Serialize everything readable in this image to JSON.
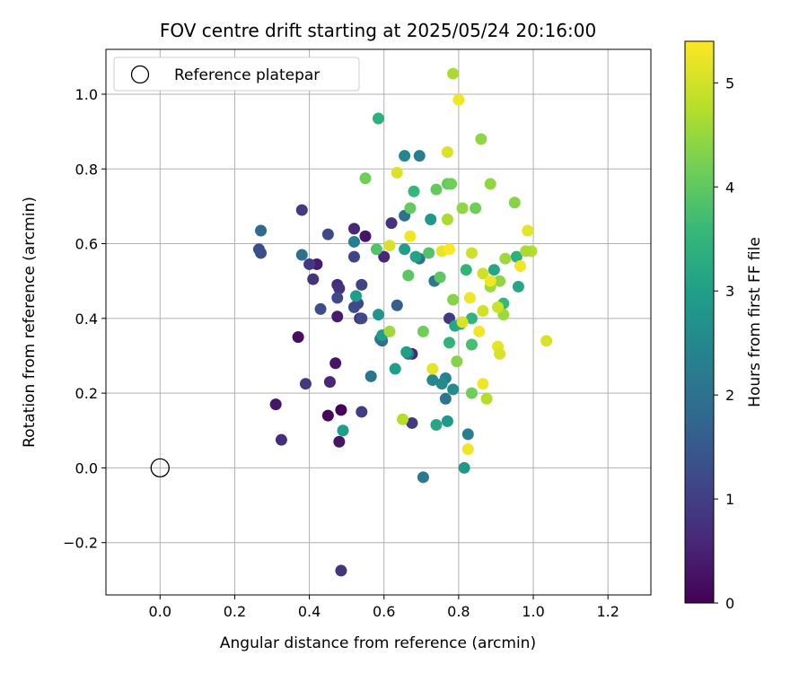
{
  "chart_data": {
    "type": "scatter",
    "title": "FOV centre drift starting at 2025/05/24 20:16:00",
    "xlabel": "Angular distance from reference (arcmin)",
    "ylabel": "Rotation from reference (arcmin)",
    "xlim": [
      -0.145,
      1.315
    ],
    "ylim": [
      -0.34,
      1.12
    ],
    "xticks": [
      0.0,
      0.2,
      0.4,
      0.6,
      0.8,
      1.0,
      1.2
    ],
    "xtick_labels": [
      "0.0",
      "0.2",
      "0.4",
      "0.6",
      "0.8",
      "1.0",
      "1.2"
    ],
    "yticks": [
      -0.2,
      0.0,
      0.2,
      0.4,
      0.6,
      0.8,
      1.0
    ],
    "ytick_labels": [
      "−0.2",
      "0.0",
      "0.2",
      "0.4",
      "0.6",
      "0.8",
      "1.0"
    ],
    "grid": true,
    "legend": {
      "position": "top-left",
      "label": "Reference platepar"
    },
    "reference_point": {
      "x": 0.0,
      "y": 0.0
    },
    "colorbar": {
      "label": "Hours from first FF file",
      "min": 0,
      "max": 5.4,
      "ticks": [
        0,
        1,
        2,
        3,
        4,
        5
      ],
      "colormap": [
        "#440154",
        "#482878",
        "#3e4989",
        "#31688e",
        "#26828e",
        "#1f9e89",
        "#35b779",
        "#6ece58",
        "#b5de2b",
        "#fde725"
      ]
    },
    "series": [
      {
        "points": [
          {
            "x": 0.485,
            "y": 0.155,
            "c": 0.05
          },
          {
            "x": 0.45,
            "y": 0.14,
            "c": 0.1
          },
          {
            "x": 0.48,
            "y": 0.07,
            "c": 0.3
          },
          {
            "x": 0.31,
            "y": 0.17,
            "c": 0.3
          },
          {
            "x": 0.47,
            "y": 0.28,
            "c": 0.3
          },
          {
            "x": 0.455,
            "y": 0.23,
            "c": 0.6
          },
          {
            "x": 0.325,
            "y": 0.075,
            "c": 0.7
          },
          {
            "x": 0.485,
            "y": -0.275,
            "c": 0.8
          },
          {
            "x": 0.54,
            "y": 0.15,
            "c": 1.0
          },
          {
            "x": 0.37,
            "y": 0.35,
            "c": 0.2
          },
          {
            "x": 0.39,
            "y": 0.225,
            "c": 0.9
          },
          {
            "x": 0.475,
            "y": 0.405,
            "c": 0.4
          },
          {
            "x": 0.535,
            "y": 0.4,
            "c": 0.6
          },
          {
            "x": 0.55,
            "y": 0.62,
            "c": 0.3
          },
          {
            "x": 0.42,
            "y": 0.545,
            "c": 0.4
          },
          {
            "x": 0.475,
            "y": 0.49,
            "c": 0.7
          },
          {
            "x": 0.48,
            "y": 0.48,
            "c": 0.8
          },
          {
            "x": 0.41,
            "y": 0.505,
            "c": 0.8
          },
          {
            "x": 0.4,
            "y": 0.545,
            "c": 0.9
          },
          {
            "x": 0.38,
            "y": 0.69,
            "c": 0.9
          },
          {
            "x": 0.52,
            "y": 0.64,
            "c": 0.6
          },
          {
            "x": 0.6,
            "y": 0.565,
            "c": 0.6
          },
          {
            "x": 0.62,
            "y": 0.655,
            "c": 0.8
          },
          {
            "x": 0.675,
            "y": 0.12,
            "c": 0.9
          },
          {
            "x": 0.675,
            "y": 0.305,
            "c": 0.6
          },
          {
            "x": 0.775,
            "y": 0.4,
            "c": 0.9
          },
          {
            "x": 0.45,
            "y": 0.625,
            "c": 1.2
          },
          {
            "x": 0.52,
            "y": 0.565,
            "c": 1.1
          },
          {
            "x": 0.475,
            "y": 0.455,
            "c": 1.2
          },
          {
            "x": 0.43,
            "y": 0.425,
            "c": 1.3
          },
          {
            "x": 0.52,
            "y": 0.43,
            "c": 1.3
          },
          {
            "x": 0.53,
            "y": 0.44,
            "c": 1.2
          },
          {
            "x": 0.54,
            "y": 0.49,
            "c": 1.1
          },
          {
            "x": 0.54,
            "y": 0.4,
            "c": 1.2
          },
          {
            "x": 0.265,
            "y": 0.585,
            "c": 1.3
          },
          {
            "x": 0.27,
            "y": 0.575,
            "c": 1.3
          },
          {
            "x": 0.27,
            "y": 0.635,
            "c": 1.8
          },
          {
            "x": 0.38,
            "y": 0.57,
            "c": 2.0
          },
          {
            "x": 0.52,
            "y": 0.605,
            "c": 2.3
          },
          {
            "x": 0.59,
            "y": 0.345,
            "c": 2.3
          },
          {
            "x": 0.595,
            "y": 0.34,
            "c": 2.0
          },
          {
            "x": 0.635,
            "y": 0.435,
            "c": 1.6
          },
          {
            "x": 0.565,
            "y": 0.245,
            "c": 2.1
          },
          {
            "x": 0.655,
            "y": 0.675,
            "c": 2.0
          },
          {
            "x": 0.665,
            "y": 0.305,
            "c": 2.0
          },
          {
            "x": 0.655,
            "y": 0.835,
            "c": 2.5
          },
          {
            "x": 0.695,
            "y": 0.835,
            "c": 2.3
          },
          {
            "x": 0.705,
            "y": -0.025,
            "c": 2.2
          },
          {
            "x": 0.695,
            "y": 0.56,
            "c": 2.1
          },
          {
            "x": 0.735,
            "y": 0.5,
            "c": 2.2
          },
          {
            "x": 0.765,
            "y": 0.185,
            "c": 2.1
          },
          {
            "x": 0.765,
            "y": 0.24,
            "c": 2.4
          },
          {
            "x": 0.73,
            "y": 0.235,
            "c": 2.5
          },
          {
            "x": 0.755,
            "y": 0.225,
            "c": 2.6
          },
          {
            "x": 0.785,
            "y": 0.21,
            "c": 2.6
          },
          {
            "x": 0.825,
            "y": 0.09,
            "c": 2.3
          },
          {
            "x": 0.815,
            "y": 0.0,
            "c": 2.9
          },
          {
            "x": 0.77,
            "y": 0.125,
            "c": 2.9
          },
          {
            "x": 0.74,
            "y": 0.115,
            "c": 3.2
          },
          {
            "x": 0.49,
            "y": 0.1,
            "c": 3.0
          },
          {
            "x": 0.525,
            "y": 0.46,
            "c": 3.0
          },
          {
            "x": 0.585,
            "y": 0.41,
            "c": 2.8
          },
          {
            "x": 0.595,
            "y": 0.355,
            "c": 3.0
          },
          {
            "x": 0.63,
            "y": 0.265,
            "c": 3.0
          },
          {
            "x": 0.66,
            "y": 0.31,
            "c": 3.0
          },
          {
            "x": 0.725,
            "y": 0.665,
            "c": 2.9
          },
          {
            "x": 0.655,
            "y": 0.585,
            "c": 3.0
          },
          {
            "x": 0.685,
            "y": 0.565,
            "c": 3.1
          },
          {
            "x": 0.585,
            "y": 0.935,
            "c": 3.4
          },
          {
            "x": 0.775,
            "y": 0.335,
            "c": 3.5
          },
          {
            "x": 0.79,
            "y": 0.38,
            "c": 3.2
          },
          {
            "x": 0.805,
            "y": 0.385,
            "c": 3.2
          },
          {
            "x": 0.82,
            "y": 0.53,
            "c": 3.5
          },
          {
            "x": 0.835,
            "y": 0.4,
            "c": 3.5
          },
          {
            "x": 0.835,
            "y": 0.33,
            "c": 3.8
          },
          {
            "x": 0.895,
            "y": 0.53,
            "c": 3.2
          },
          {
            "x": 0.92,
            "y": 0.44,
            "c": 3.6
          },
          {
            "x": 0.955,
            "y": 0.565,
            "c": 3.4
          },
          {
            "x": 0.96,
            "y": 0.485,
            "c": 3.2
          },
          {
            "x": 0.68,
            "y": 0.74,
            "c": 3.6
          },
          {
            "x": 0.72,
            "y": 0.575,
            "c": 3.9
          },
          {
            "x": 0.58,
            "y": 0.585,
            "c": 3.9
          },
          {
            "x": 0.67,
            "y": 0.695,
            "c": 4.1
          },
          {
            "x": 0.74,
            "y": 0.745,
            "c": 4.1
          },
          {
            "x": 0.75,
            "y": 0.51,
            "c": 4.0
          },
          {
            "x": 0.77,
            "y": 0.76,
            "c": 4.1
          },
          {
            "x": 0.78,
            "y": 0.76,
            "c": 4.2
          },
          {
            "x": 0.81,
            "y": 0.695,
            "c": 4.5
          },
          {
            "x": 0.845,
            "y": 0.695,
            "c": 4.2
          },
          {
            "x": 0.55,
            "y": 0.775,
            "c": 4.2
          },
          {
            "x": 0.665,
            "y": 0.515,
            "c": 4.0
          },
          {
            "x": 0.705,
            "y": 0.365,
            "c": 4.2
          },
          {
            "x": 0.785,
            "y": 0.45,
            "c": 4.4
          },
          {
            "x": 0.795,
            "y": 0.285,
            "c": 4.4
          },
          {
            "x": 0.835,
            "y": 0.2,
            "c": 4.2
          },
          {
            "x": 0.86,
            "y": 0.88,
            "c": 4.5
          },
          {
            "x": 0.885,
            "y": 0.485,
            "c": 4.6
          },
          {
            "x": 0.885,
            "y": 0.76,
            "c": 4.5
          },
          {
            "x": 0.91,
            "y": 0.5,
            "c": 4.5
          },
          {
            "x": 0.92,
            "y": 0.41,
            "c": 4.6
          },
          {
            "x": 0.925,
            "y": 0.56,
            "c": 4.6
          },
          {
            "x": 0.95,
            "y": 0.71,
            "c": 4.4
          },
          {
            "x": 0.995,
            "y": 0.58,
            "c": 4.8
          },
          {
            "x": 0.98,
            "y": 0.58,
            "c": 4.7
          },
          {
            "x": 0.615,
            "y": 0.365,
            "c": 4.6
          },
          {
            "x": 0.785,
            "y": 1.055,
            "c": 4.7
          },
          {
            "x": 0.77,
            "y": 0.665,
            "c": 4.7
          },
          {
            "x": 0.875,
            "y": 0.185,
            "c": 4.8
          },
          {
            "x": 0.615,
            "y": 0.595,
            "c": 5.1
          },
          {
            "x": 0.635,
            "y": 0.79,
            "c": 5.1
          },
          {
            "x": 0.65,
            "y": 0.13,
            "c": 4.8
          },
          {
            "x": 0.67,
            "y": 0.62,
            "c": 5.3
          },
          {
            "x": 0.73,
            "y": 0.265,
            "c": 5.2
          },
          {
            "x": 0.755,
            "y": 0.58,
            "c": 5.2
          },
          {
            "x": 0.775,
            "y": 0.585,
            "c": 5.4
          },
          {
            "x": 0.77,
            "y": 0.845,
            "c": 5.1
          },
          {
            "x": 0.8,
            "y": 0.985,
            "c": 5.3
          },
          {
            "x": 0.81,
            "y": 0.39,
            "c": 5.1
          },
          {
            "x": 0.83,
            "y": 0.455,
            "c": 5.3
          },
          {
            "x": 0.835,
            "y": 0.575,
            "c": 5.0
          },
          {
            "x": 0.855,
            "y": 0.365,
            "c": 5.3
          },
          {
            "x": 0.865,
            "y": 0.42,
            "c": 5.0
          },
          {
            "x": 0.865,
            "y": 0.52,
            "c": 5.0
          },
          {
            "x": 0.865,
            "y": 0.225,
            "c": 5.3
          },
          {
            "x": 0.825,
            "y": 0.05,
            "c": 5.3
          },
          {
            "x": 0.885,
            "y": 0.5,
            "c": 5.3
          },
          {
            "x": 0.905,
            "y": 0.43,
            "c": 5.0
          },
          {
            "x": 0.905,
            "y": 0.325,
            "c": 5.2
          },
          {
            "x": 0.91,
            "y": 0.305,
            "c": 5.1
          },
          {
            "x": 0.965,
            "y": 0.54,
            "c": 5.3
          },
          {
            "x": 0.985,
            "y": 0.635,
            "c": 5.2
          },
          {
            "x": 1.035,
            "y": 0.34,
            "c": 5.1
          }
        ]
      }
    ]
  }
}
